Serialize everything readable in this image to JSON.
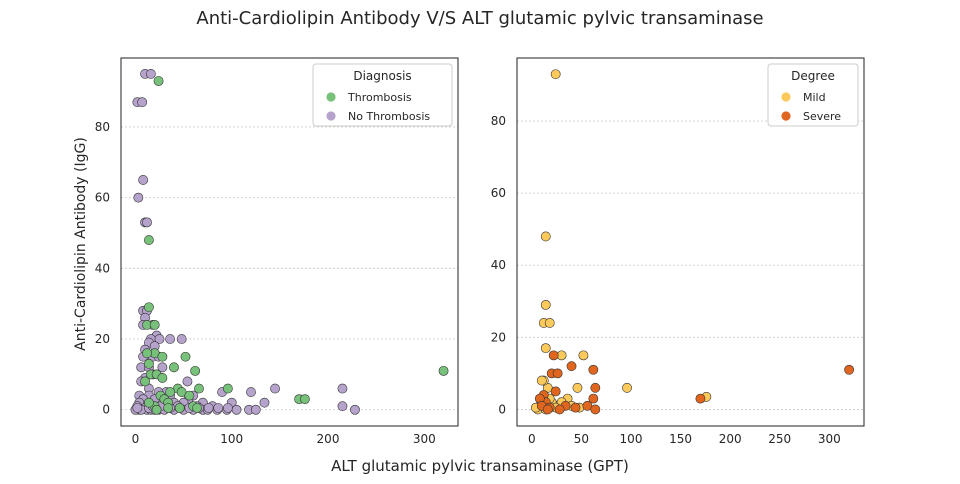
{
  "figure": {
    "title": "Anti-Cardiolipin Antibody V/S ALT glutamic pylvic transaminase",
    "xlabel": "ALT glutamic pylvic transaminase (GPT)"
  },
  "chart_data": [
    {
      "type": "scatter",
      "ylabel": "Anti-Cardiolipin Antibody (IgG)",
      "xlim": [
        -15,
        335
      ],
      "ylim": [
        -4.6,
        99.5
      ],
      "xticks": [
        0,
        100,
        200,
        300
      ],
      "yticks": [
        0,
        20,
        40,
        60,
        80
      ],
      "grid": "y",
      "legend": {
        "title": "Diagnosis",
        "placement": "top-right"
      },
      "series": [
        {
          "name": "No Thrombosis",
          "color": "#b6a3cc",
          "points": [
            [
              10,
              95
            ],
            [
              16,
              95
            ],
            [
              2,
              87
            ],
            [
              7,
              87
            ],
            [
              8,
              65
            ],
            [
              3,
              60
            ],
            [
              10,
              53
            ],
            [
              12,
              53
            ],
            [
              8,
              28
            ],
            [
              12,
              28
            ],
            [
              10,
              26
            ],
            [
              18,
              24
            ],
            [
              8,
              24
            ],
            [
              22,
              21
            ],
            [
              16,
              20
            ],
            [
              14,
              19
            ],
            [
              25,
              20
            ],
            [
              36,
              20
            ],
            [
              48,
              20
            ],
            [
              10,
              17
            ],
            [
              20,
              18
            ],
            [
              14,
              15
            ],
            [
              8,
              15
            ],
            [
              18,
              15
            ],
            [
              24,
              15
            ],
            [
              28,
              12
            ],
            [
              6,
              12
            ],
            [
              14,
              12
            ],
            [
              18,
              10
            ],
            [
              10,
              9
            ],
            [
              54,
              8
            ],
            [
              6,
              8
            ],
            [
              14,
              6
            ],
            [
              145,
              6
            ],
            [
              215,
              6
            ],
            [
              32,
              5
            ],
            [
              24,
              5
            ],
            [
              36,
              4
            ],
            [
              14,
              4
            ],
            [
              4,
              4
            ],
            [
              120,
              5
            ],
            [
              90,
              5
            ],
            [
              60,
              4
            ],
            [
              8,
              3
            ],
            [
              20,
              3
            ],
            [
              40,
              2
            ],
            [
              55,
              3
            ],
            [
              30,
              2
            ],
            [
              50,
              2
            ],
            [
              70,
              2
            ],
            [
              134,
              2
            ],
            [
              4,
              2
            ],
            [
              12,
              1
            ],
            [
              100,
              2
            ],
            [
              215,
              1
            ],
            [
              80,
              1
            ],
            [
              2,
              1
            ],
            [
              10,
              0.5
            ],
            [
              12,
              0
            ],
            [
              16,
              0
            ],
            [
              24,
              0
            ],
            [
              4,
              0
            ],
            [
              0,
              0
            ],
            [
              6,
              0
            ],
            [
              20,
              0
            ],
            [
              30,
              0
            ],
            [
              40,
              0
            ],
            [
              50,
              0
            ],
            [
              60,
              0
            ],
            [
              70,
              0
            ],
            [
              75,
              0
            ],
            [
              85,
              0
            ],
            [
              95,
              0
            ],
            [
              105,
              0
            ],
            [
              118,
              0
            ],
            [
              125,
              0
            ],
            [
              228,
              0
            ],
            [
              34,
              1
            ],
            [
              44,
              1
            ],
            [
              64,
              1
            ],
            [
              2,
              0.5
            ],
            [
              14,
              0.5
            ],
            [
              18,
              1
            ],
            [
              26,
              1
            ],
            [
              36,
              0.5
            ],
            [
              46,
              0.5
            ],
            [
              56,
              0.5
            ],
            [
              66,
              0.5
            ],
            [
              76,
              0.5
            ],
            [
              86,
              0.5
            ],
            [
              96,
              0.5
            ]
          ]
        },
        {
          "name": "Thrombosis",
          "color": "#77c17a",
          "points": [
            [
              24,
              93
            ],
            [
              14,
              48
            ],
            [
              14,
              29
            ],
            [
              12,
              24
            ],
            [
              20,
              24
            ],
            [
              20,
              16
            ],
            [
              28,
              15
            ],
            [
              52,
              15
            ],
            [
              12,
              16
            ],
            [
              14,
              13
            ],
            [
              16,
              10
            ],
            [
              62,
              11
            ],
            [
              40,
              12
            ],
            [
              22,
              10
            ],
            [
              28,
              9
            ],
            [
              10,
              8
            ],
            [
              66,
              6
            ],
            [
              96,
              6
            ],
            [
              44,
              6
            ],
            [
              36,
              5
            ],
            [
              48,
              5
            ],
            [
              56,
              4
            ],
            [
              26,
              4
            ],
            [
              30,
              3
            ],
            [
              170,
              3
            ],
            [
              176,
              3
            ],
            [
              320,
              11
            ],
            [
              34,
              2
            ],
            [
              20,
              1
            ],
            [
              60,
              1
            ],
            [
              14,
              2
            ],
            [
              46,
              0.5
            ],
            [
              64,
              0.5
            ],
            [
              34,
              0.5
            ],
            [
              22,
              0
            ]
          ]
        }
      ]
    },
    {
      "type": "scatter",
      "ylabel": "",
      "xlim": [
        -15,
        335
      ],
      "ylim": [
        -4.6,
        97.5
      ],
      "xticks": [
        0,
        50,
        100,
        150,
        200,
        250,
        300
      ],
      "yticks": [
        0,
        20,
        40,
        60,
        80
      ],
      "grid": "y",
      "legend": {
        "title": "Degree",
        "placement": "top-right"
      },
      "series": [
        {
          "name": "Mild",
          "color": "#fcc95b",
          "points": [
            [
              24,
              93
            ],
            [
              14,
              48
            ],
            [
              14,
              29
            ],
            [
              12,
              24
            ],
            [
              18,
              24
            ],
            [
              14,
              17
            ],
            [
              30,
              15
            ],
            [
              52,
              15
            ],
            [
              16,
              6
            ],
            [
              96,
              6
            ],
            [
              46,
              6
            ],
            [
              12,
              8
            ],
            [
              10,
              8
            ],
            [
              36,
              3
            ],
            [
              40,
              1
            ],
            [
              26,
              1
            ],
            [
              20,
              2
            ],
            [
              30,
              2
            ],
            [
              48,
              0.5
            ],
            [
              8,
              1
            ],
            [
              12,
              1
            ],
            [
              24,
              0.5
            ],
            [
              6,
              0
            ],
            [
              14,
              0
            ],
            [
              4,
              0.5
            ],
            [
              176,
              3.5
            ],
            [
              18,
              3
            ]
          ]
        },
        {
          "name": "Severe",
          "color": "#e0651e",
          "points": [
            [
              320,
              11
            ],
            [
              170,
              3
            ],
            [
              22,
              15
            ],
            [
              62,
              11
            ],
            [
              40,
              12
            ],
            [
              20,
              10
            ],
            [
              26,
              10
            ],
            [
              12,
              4
            ],
            [
              24,
              5
            ],
            [
              64,
              6
            ],
            [
              14,
              2
            ],
            [
              56,
              1
            ],
            [
              34,
              1
            ],
            [
              8,
              3
            ],
            [
              10,
              1
            ],
            [
              18,
              0.5
            ],
            [
              28,
              0
            ],
            [
              62,
              3
            ],
            [
              64,
              0
            ],
            [
              16,
              0
            ],
            [
              44,
              0.5
            ]
          ]
        }
      ]
    }
  ]
}
